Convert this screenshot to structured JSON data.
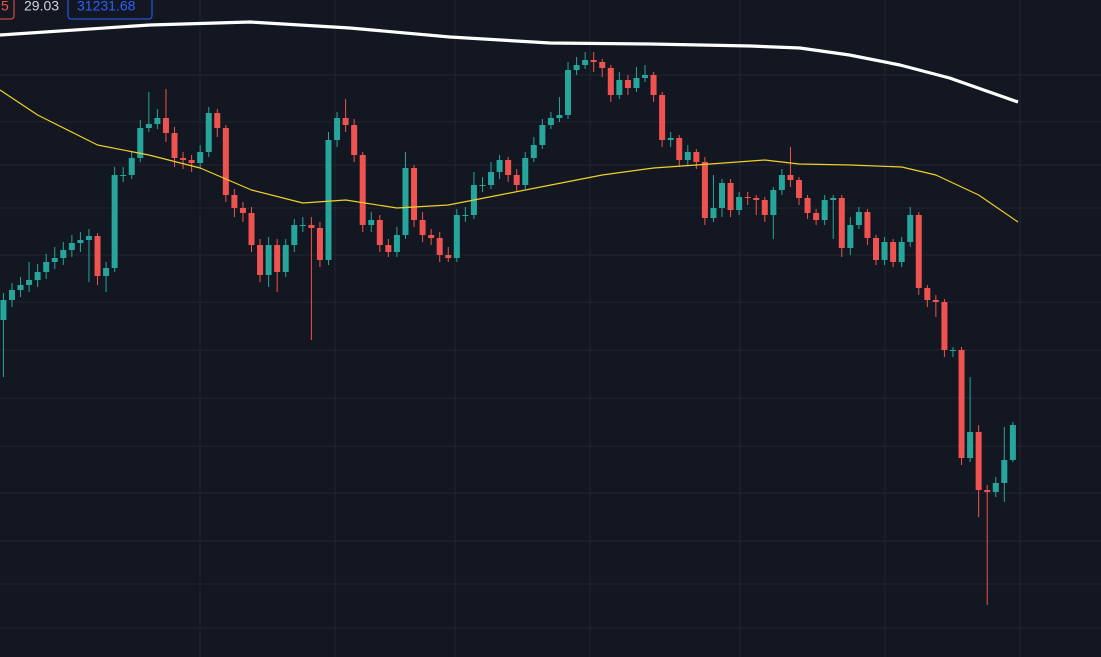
{
  "toolbar": {
    "items": [
      "5",
      "29.03",
      "31231.68"
    ]
  },
  "chart_data": {
    "type": "candlestick",
    "xlim": [
      -0.4,
      118.6
    ],
    "ylim": [
      0,
      657
    ],
    "up_color": "#26a69a",
    "down_color": "#ef5350",
    "ohlc": [
      [
        337,
        364,
        280,
        357
      ],
      [
        357,
        374,
        350,
        367
      ],
      [
        367,
        380,
        360,
        372
      ],
      [
        372,
        395,
        365,
        377
      ],
      [
        377,
        393,
        370,
        385
      ],
      [
        385,
        403,
        378,
        395
      ],
      [
        395,
        410,
        388,
        399
      ],
      [
        399,
        415,
        392,
        407
      ],
      [
        407,
        422,
        400,
        414
      ],
      [
        414,
        425,
        405,
        417
      ],
      [
        417,
        428,
        375,
        421
      ],
      [
        421,
        424,
        372,
        381
      ],
      [
        381,
        395,
        365,
        389
      ],
      [
        389,
        490,
        385,
        482
      ],
      [
        482,
        490,
        475,
        482
      ],
      [
        482,
        505,
        478,
        499
      ],
      [
        499,
        537,
        495,
        529
      ],
      [
        529,
        565,
        525,
        533
      ],
      [
        533,
        548,
        528,
        539
      ],
      [
        539,
        568,
        515,
        524
      ],
      [
        524,
        530,
        490,
        499
      ],
      [
        499,
        505,
        488,
        497
      ],
      [
        497,
        502,
        485,
        494
      ],
      [
        494,
        512,
        488,
        505
      ],
      [
        505,
        550,
        500,
        544
      ],
      [
        544,
        548,
        520,
        529
      ],
      [
        529,
        532,
        455,
        462
      ],
      [
        462,
        468,
        440,
        449
      ],
      [
        449,
        455,
        435,
        444
      ],
      [
        444,
        450,
        405,
        412
      ],
      [
        412,
        418,
        375,
        382
      ],
      [
        382,
        420,
        370,
        412
      ],
      [
        412,
        418,
        365,
        385
      ],
      [
        385,
        418,
        380,
        412
      ],
      [
        412,
        438,
        405,
        432
      ],
      [
        432,
        440,
        425,
        432
      ],
      [
        432,
        440,
        317,
        429
      ],
      [
        429,
        435,
        390,
        397
      ],
      [
        397,
        525,
        392,
        517
      ],
      [
        517,
        545,
        510,
        539
      ],
      [
        539,
        558,
        525,
        532
      ],
      [
        532,
        538,
        495,
        502
      ],
      [
        502,
        505,
        425,
        432
      ],
      [
        432,
        445,
        425,
        437
      ],
      [
        437,
        442,
        405,
        412
      ],
      [
        412,
        418,
        400,
        405
      ],
      [
        405,
        430,
        400,
        422
      ],
      [
        422,
        505,
        418,
        489
      ],
      [
        489,
        492,
        430,
        437
      ],
      [
        437,
        445,
        415,
        422
      ],
      [
        422,
        428,
        412,
        419
      ],
      [
        419,
        425,
        395,
        402
      ],
      [
        402,
        410,
        395,
        399
      ],
      [
        399,
        448,
        395,
        442
      ],
      [
        442,
        450,
        435,
        442
      ],
      [
        442,
        485,
        438,
        472
      ],
      [
        472,
        480,
        465,
        472
      ],
      [
        472,
        495,
        468,
        485
      ],
      [
        485,
        502,
        478,
        497
      ],
      [
        497,
        500,
        475,
        482
      ],
      [
        482,
        488,
        465,
        472
      ],
      [
        472,
        505,
        468,
        499
      ],
      [
        499,
        520,
        495,
        512
      ],
      [
        512,
        538,
        508,
        532
      ],
      [
        532,
        545,
        528,
        539
      ],
      [
        539,
        560,
        535,
        542
      ],
      [
        542,
        595,
        538,
        587
      ],
      [
        587,
        600,
        582,
        592
      ],
      [
        592,
        605,
        588,
        597
      ],
      [
        597,
        605,
        585,
        595
      ],
      [
        595,
        598,
        580,
        589
      ],
      [
        589,
        592,
        555,
        562
      ],
      [
        562,
        585,
        558,
        577
      ],
      [
        577,
        582,
        562,
        569
      ],
      [
        569,
        590,
        565,
        579
      ],
      [
        579,
        592,
        575,
        582
      ],
      [
        582,
        585,
        555,
        562
      ],
      [
        562,
        565,
        510,
        517
      ],
      [
        517,
        525,
        510,
        519
      ],
      [
        519,
        522,
        490,
        497
      ],
      [
        497,
        512,
        492,
        505
      ],
      [
        505,
        508,
        488,
        495
      ],
      [
        495,
        500,
        432,
        439
      ],
      [
        439,
        482,
        435,
        449
      ],
      [
        449,
        478,
        440,
        474
      ],
      [
        474,
        478,
        440,
        447
      ],
      [
        447,
        465,
        442,
        460
      ],
      [
        460,
        465,
        452,
        459
      ],
      [
        459,
        462,
        442,
        457
      ],
      [
        457,
        460,
        435,
        442
      ],
      [
        442,
        470,
        418,
        467
      ],
      [
        467,
        488,
        462,
        482
      ],
      [
        482,
        510,
        470,
        477
      ],
      [
        477,
        480,
        452,
        459
      ],
      [
        459,
        462,
        438,
        444
      ],
      [
        444,
        448,
        432,
        437
      ],
      [
        437,
        462,
        432,
        457
      ],
      [
        457,
        462,
        418,
        459
      ],
      [
        459,
        462,
        400,
        409
      ],
      [
        409,
        440,
        402,
        432
      ],
      [
        432,
        450,
        428,
        445
      ],
      [
        445,
        448,
        412,
        419
      ],
      [
        419,
        422,
        392,
        397
      ],
      [
        397,
        420,
        392,
        415
      ],
      [
        415,
        418,
        390,
        395
      ],
      [
        395,
        420,
        390,
        415
      ],
      [
        415,
        450,
        410,
        442
      ],
      [
        442,
        445,
        362,
        369
      ],
      [
        369,
        372,
        350,
        357
      ],
      [
        357,
        362,
        340,
        355
      ],
      [
        355,
        358,
        300,
        307
      ],
      [
        307,
        310,
        300,
        307
      ],
      [
        307,
        310,
        192,
        199
      ],
      [
        199,
        280,
        195,
        225
      ],
      [
        225,
        232,
        140,
        167
      ],
      [
        167,
        172,
        52,
        165
      ],
      [
        165,
        180,
        160,
        174
      ],
      [
        174,
        230,
        155,
        197
      ],
      [
        197,
        235,
        195,
        232
      ]
    ],
    "series": [
      {
        "color": "#f2d024",
        "width": 1.2,
        "x": [
          -0.4,
          4,
          11,
          17,
          23,
          29,
          35,
          40,
          46,
          52,
          58,
          64,
          70,
          76,
          81,
          89,
          93,
          99,
          105,
          109,
          114,
          118.6
        ],
        "values": [
          567,
          542,
          512,
          502,
          489,
          467,
          454,
          457,
          449,
          452,
          462,
          472,
          482,
          489,
          492,
          497,
          493,
          492,
          490,
          482,
          462,
          435
        ]
      },
      {
        "color": "#ffffff",
        "width": 3.2,
        "x": [
          -0.4,
          17.1,
          28.8,
          40.5,
          52.2,
          63.9,
          75.6,
          87.3,
          93.1,
          98.9,
          104.8,
          110.6,
          118.6
        ],
        "values": [
          622,
          632,
          635,
          629,
          620,
          614,
          613,
          611,
          609,
          602,
          592,
          579,
          555
        ]
      }
    ]
  }
}
